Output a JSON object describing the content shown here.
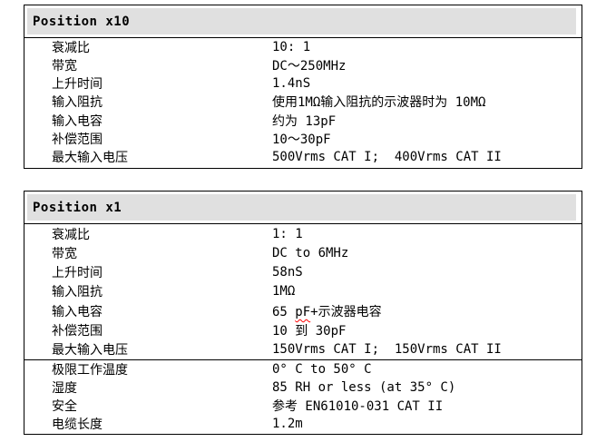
{
  "sections": [
    {
      "title": "Position x10",
      "rows": [
        {
          "label": "衰减比",
          "value": "10: 1"
        },
        {
          "label": "带宽",
          "value": "DC～250MHz"
        },
        {
          "label": "上升时间",
          "value": "1.4nS"
        },
        {
          "label": "输入阻抗",
          "value": "使用1MΩ输入阻抗的示波器时为 10MΩ"
        },
        {
          "label": "输入电容",
          "value": "约为 13pF"
        },
        {
          "label": "补偿范围",
          "value": "10～30pF"
        },
        {
          "label": "最大输入电压",
          "value": "500Vrms CAT I;  400Vrms CAT II"
        }
      ]
    },
    {
      "title": "Position x1",
      "rows": [
        {
          "label": "衰减比",
          "value": "1: 1"
        },
        {
          "label": "带宽",
          "value": "DC to 6MHz"
        },
        {
          "label": "上升时间",
          "value": "58nS"
        },
        {
          "label": "输入阻抗",
          "value": "1MΩ"
        },
        {
          "label": "输入电容",
          "value_parts": [
            "65 ",
            "pF",
            "+示波器电容"
          ]
        },
        {
          "label": "补偿范围",
          "value": "10 到 30pF"
        },
        {
          "label": "最大输入电压",
          "value": "150Vrms CAT I;  150Vrms CAT II"
        }
      ],
      "rows2": [
        {
          "label": "极限工作温度",
          "value": "0° C to 50° C"
        },
        {
          "label": "湿度",
          "value": "85 RH or less (at 35° C)"
        },
        {
          "label": "安全",
          "value": "参考 EN61010-031 CAT II"
        },
        {
          "label": "电缆长度",
          "value": "1.2m"
        }
      ]
    }
  ],
  "colors": {
    "header_background": "#e0e0e0",
    "table_border": "#000000",
    "spellcheck_underline": "#ff0000",
    "text": "#000000",
    "page_background": "#ffffff"
  }
}
